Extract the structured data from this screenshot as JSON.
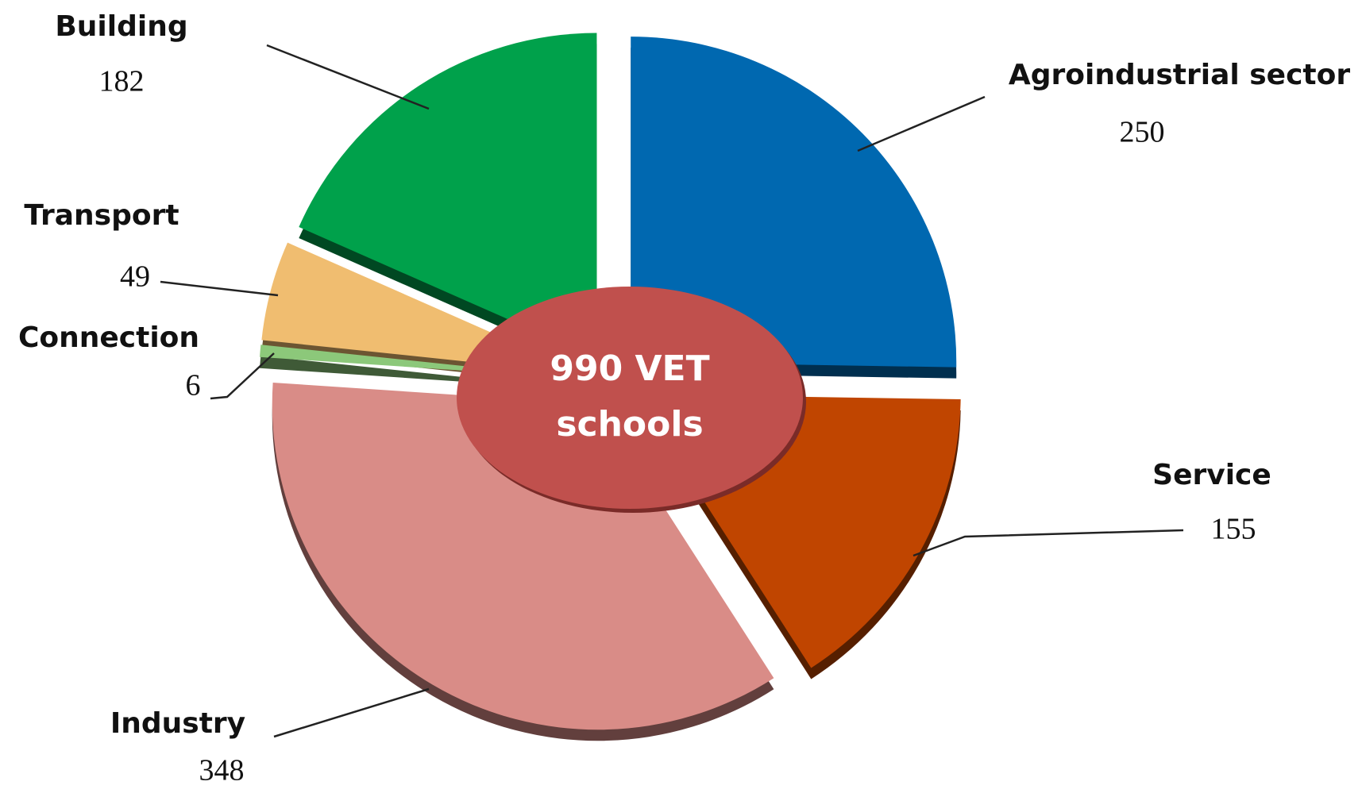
{
  "chart_data": {
    "type": "pie",
    "center_label": [
      "990 VET",
      "schools"
    ],
    "categories": [
      "Agroindustrial sector",
      "Service",
      "Industry",
      "Connection",
      "Transport",
      "Building"
    ],
    "values": [
      250,
      155,
      348,
      6,
      49,
      182
    ],
    "colors": [
      "#0068b0",
      "#c04500",
      "#d98c87",
      "#8cc87a",
      "#f0bd70",
      "#00a14b"
    ],
    "center_color": "#c0504d"
  }
}
